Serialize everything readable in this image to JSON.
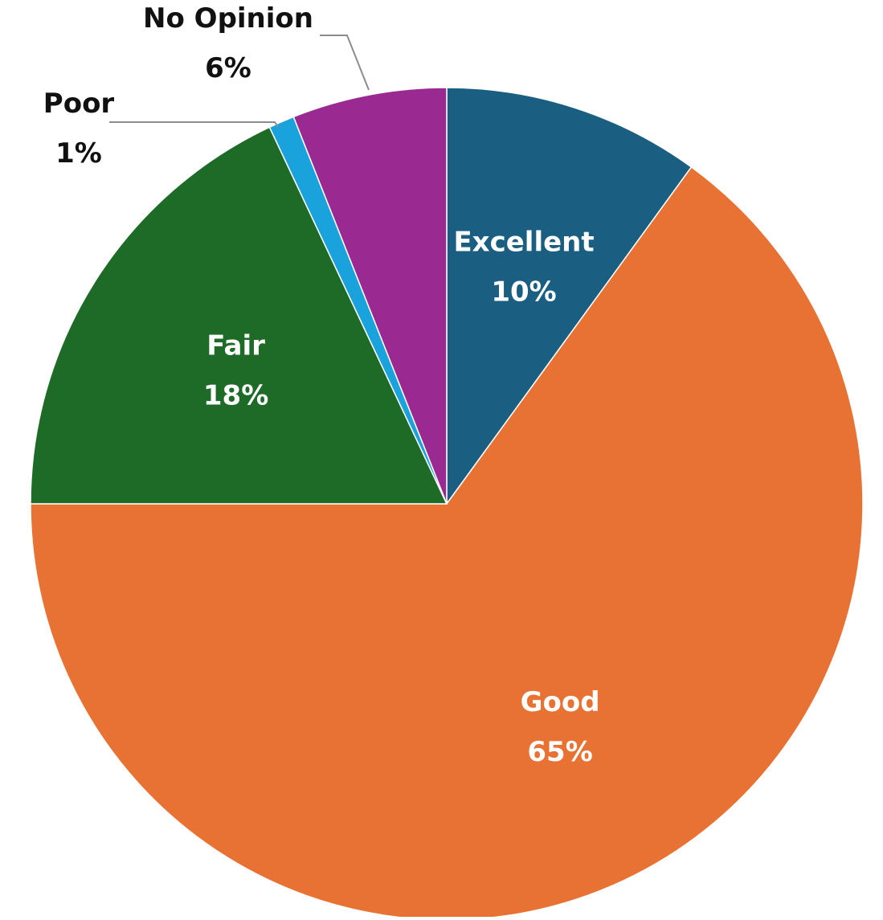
{
  "chart_data": {
    "type": "pie",
    "start_angle_deg": 0,
    "direction": "clockwise",
    "slices": [
      {
        "label": "Excellent",
        "value": 10,
        "percent_text": "10%",
        "color": "#1a5e82",
        "label_position": "inside"
      },
      {
        "label": "Good",
        "value": 65,
        "percent_text": "65%",
        "color": "#e87234",
        "label_position": "inside"
      },
      {
        "label": "Fair",
        "value": 18,
        "percent_text": "18%",
        "color": "#1d6b27",
        "label_position": "inside"
      },
      {
        "label": "Poor",
        "value": 1,
        "percent_text": "1%",
        "color": "#1aa2dc",
        "label_position": "outside"
      },
      {
        "label": "No Opinion",
        "value": 6,
        "percent_text": "6%",
        "color": "#9a2a92",
        "label_position": "outside"
      }
    ]
  }
}
